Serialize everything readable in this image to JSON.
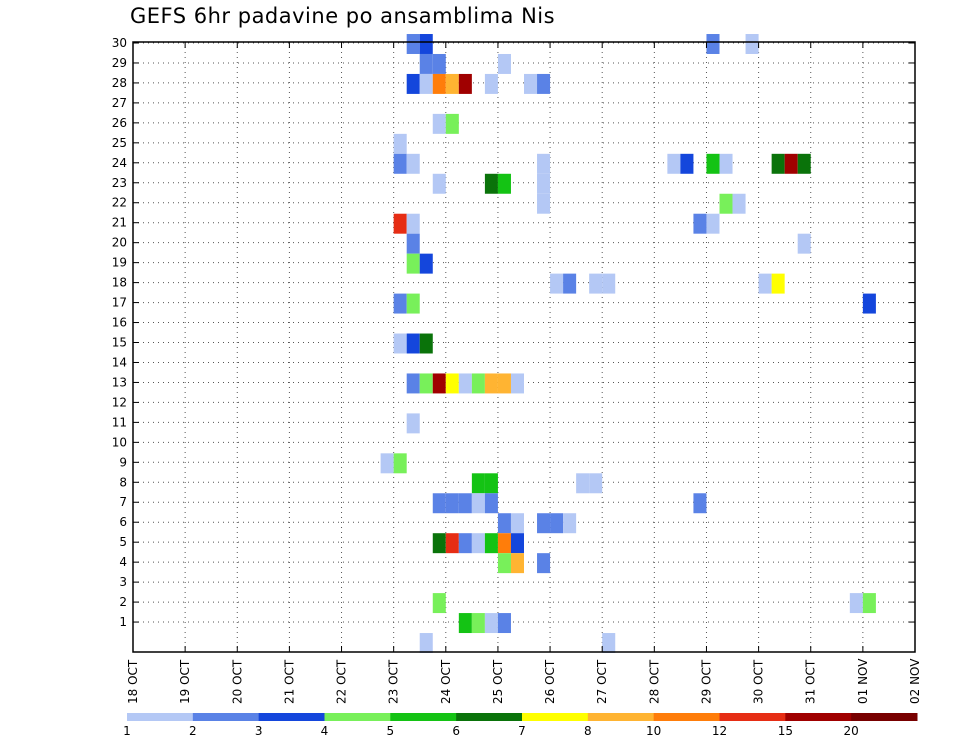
{
  "chart_data": {
    "type": "heatmap",
    "title": "GEFS 6hr padavine po ansamblima Nis",
    "x_tick_labels": [
      "18 OCT",
      "19 OCT",
      "20 OCT",
      "21 OCT",
      "22 OCT",
      "23 OCT",
      "24 OCT",
      "25 OCT",
      "26 OCT",
      "27 OCT",
      "28 OCT",
      "29 OCT",
      "30 OCT",
      "31 OCT",
      "01 NOV",
      "02 NOV"
    ],
    "x_steps_per_tick": 4,
    "y_tick_labels": [
      "1",
      "2",
      "3",
      "4",
      "5",
      "6",
      "7",
      "8",
      "9",
      "10",
      "11",
      "12",
      "13",
      "14",
      "15",
      "16",
      "17",
      "18",
      "19",
      "20",
      "21",
      "22",
      "23",
      "24",
      "25",
      "26",
      "27",
      "28",
      "29",
      "30"
    ],
    "ylim": [
      0,
      30
    ],
    "grid": "dotted",
    "colorbar": {
      "labels": [
        "1",
        "2",
        "3",
        "4",
        "5",
        "6",
        "7",
        "8",
        "10",
        "12",
        "15",
        "20"
      ],
      "colors": [
        "#b4c8f5",
        "#5a82e6",
        "#1446dc",
        "#78f05a",
        "#14c314",
        "#0a730a",
        "#ffff00",
        "#ffb432",
        "#ff7d0a",
        "#e62d14",
        "#a00000",
        "#780000"
      ]
    },
    "cells": [
      {
        "col": 23.25,
        "row": 30,
        "level": 2
      },
      {
        "col": 23.5,
        "row": 30,
        "level": 3
      },
      {
        "col": 29.0,
        "row": 30,
        "level": 2
      },
      {
        "col": 29.75,
        "row": 30,
        "level": 1
      },
      {
        "col": 23.5,
        "row": 29,
        "level": 2
      },
      {
        "col": 23.75,
        "row": 29,
        "level": 2
      },
      {
        "col": 25.0,
        "row": 29,
        "level": 1
      },
      {
        "col": 23.25,
        "row": 28,
        "level": 3
      },
      {
        "col": 23.5,
        "row": 28,
        "level": 1
      },
      {
        "col": 23.75,
        "row": 28,
        "level": 9
      },
      {
        "col": 24.0,
        "row": 28,
        "level": 8
      },
      {
        "col": 24.25,
        "row": 28,
        "level": 11
      },
      {
        "col": 24.75,
        "row": 28,
        "level": 1
      },
      {
        "col": 25.5,
        "row": 28,
        "level": 1
      },
      {
        "col": 25.75,
        "row": 28,
        "level": 2
      },
      {
        "col": 23.75,
        "row": 26,
        "level": 1
      },
      {
        "col": 24.0,
        "row": 26,
        "level": 4
      },
      {
        "col": 23.0,
        "row": 25,
        "level": 1
      },
      {
        "col": 23.0,
        "row": 24,
        "level": 2
      },
      {
        "col": 23.25,
        "row": 24,
        "level": 1
      },
      {
        "col": 25.75,
        "row": 24,
        "level": 1
      },
      {
        "col": 28.25,
        "row": 24,
        "level": 1
      },
      {
        "col": 28.5,
        "row": 24,
        "level": 3
      },
      {
        "col": 29.0,
        "row": 24,
        "level": 5
      },
      {
        "col": 29.25,
        "row": 24,
        "level": 1
      },
      {
        "col": 30.25,
        "row": 24,
        "level": 6
      },
      {
        "col": 30.5,
        "row": 24,
        "level": 11
      },
      {
        "col": 30.75,
        "row": 24,
        "level": 6
      },
      {
        "col": 23.75,
        "row": 23,
        "level": 1
      },
      {
        "col": 24.75,
        "row": 23,
        "level": 6
      },
      {
        "col": 25.0,
        "row": 23,
        "level": 5
      },
      {
        "col": 25.75,
        "row": 23,
        "level": 1
      },
      {
        "col": 25.75,
        "row": 22,
        "level": 1
      },
      {
        "col": 29.25,
        "row": 22,
        "level": 4
      },
      {
        "col": 29.5,
        "row": 22,
        "level": 1
      },
      {
        "col": 23.0,
        "row": 21,
        "level": 10
      },
      {
        "col": 23.25,
        "row": 21,
        "level": 1
      },
      {
        "col": 28.75,
        "row": 21,
        "level": 2
      },
      {
        "col": 29.0,
        "row": 21,
        "level": 1
      },
      {
        "col": 23.25,
        "row": 20,
        "level": 2
      },
      {
        "col": 30.75,
        "row": 20,
        "level": 1
      },
      {
        "col": 23.25,
        "row": 19,
        "level": 4
      },
      {
        "col": 23.5,
        "row": 19,
        "level": 3
      },
      {
        "col": 26.0,
        "row": 18,
        "level": 1
      },
      {
        "col": 26.25,
        "row": 18,
        "level": 2
      },
      {
        "col": 26.75,
        "row": 18,
        "level": 1
      },
      {
        "col": 27.0,
        "row": 18,
        "level": 1
      },
      {
        "col": 30.0,
        "row": 18,
        "level": 1
      },
      {
        "col": 30.25,
        "row": 18,
        "level": 7
      },
      {
        "col": 23.0,
        "row": 17,
        "level": 2
      },
      {
        "col": 23.25,
        "row": 17,
        "level": 4
      },
      {
        "col": 32.0,
        "row": 17,
        "level": 3
      },
      {
        "col": 23.0,
        "row": 15,
        "level": 1
      },
      {
        "col": 23.25,
        "row": 15,
        "level": 3
      },
      {
        "col": 23.5,
        "row": 15,
        "level": 6
      },
      {
        "col": 23.25,
        "row": 13,
        "level": 2
      },
      {
        "col": 23.5,
        "row": 13,
        "level": 4
      },
      {
        "col": 23.75,
        "row": 13,
        "level": 11
      },
      {
        "col": 24.0,
        "row": 13,
        "level": 7
      },
      {
        "col": 24.25,
        "row": 13,
        "level": 1
      },
      {
        "col": 24.5,
        "row": 13,
        "level": 4
      },
      {
        "col": 24.75,
        "row": 13,
        "level": 8
      },
      {
        "col": 25.0,
        "row": 13,
        "level": 8
      },
      {
        "col": 25.25,
        "row": 13,
        "level": 1
      },
      {
        "col": 23.25,
        "row": 11,
        "level": 1
      },
      {
        "col": 22.75,
        "row": 9,
        "level": 1
      },
      {
        "col": 23.0,
        "row": 9,
        "level": 4
      },
      {
        "col": 24.5,
        "row": 8,
        "level": 5
      },
      {
        "col": 24.75,
        "row": 8,
        "level": 5
      },
      {
        "col": 26.5,
        "row": 8,
        "level": 1
      },
      {
        "col": 26.75,
        "row": 8,
        "level": 1
      },
      {
        "col": 23.75,
        "row": 7,
        "level": 2
      },
      {
        "col": 24.0,
        "row": 7,
        "level": 2
      },
      {
        "col": 24.25,
        "row": 7,
        "level": 2
      },
      {
        "col": 24.5,
        "row": 7,
        "level": 1
      },
      {
        "col": 24.75,
        "row": 7,
        "level": 2
      },
      {
        "col": 28.75,
        "row": 7,
        "level": 2
      },
      {
        "col": 25.0,
        "row": 6,
        "level": 2
      },
      {
        "col": 25.25,
        "row": 6,
        "level": 1
      },
      {
        "col": 25.75,
        "row": 6,
        "level": 2
      },
      {
        "col": 26.0,
        "row": 6,
        "level": 2
      },
      {
        "col": 26.25,
        "row": 6,
        "level": 1
      },
      {
        "col": 23.75,
        "row": 5,
        "level": 6
      },
      {
        "col": 24.0,
        "row": 5,
        "level": 10
      },
      {
        "col": 24.25,
        "row": 5,
        "level": 2
      },
      {
        "col": 24.5,
        "row": 5,
        "level": 1
      },
      {
        "col": 24.75,
        "row": 5,
        "level": 5
      },
      {
        "col": 25.0,
        "row": 5,
        "level": 9
      },
      {
        "col": 25.25,
        "row": 5,
        "level": 3
      },
      {
        "col": 25.0,
        "row": 4,
        "level": 4
      },
      {
        "col": 25.25,
        "row": 4,
        "level": 8
      },
      {
        "col": 25.75,
        "row": 4,
        "level": 2
      },
      {
        "col": 23.75,
        "row": 2,
        "level": 4
      },
      {
        "col": 31.75,
        "row": 2,
        "level": 1
      },
      {
        "col": 32.0,
        "row": 2,
        "level": 4
      },
      {
        "col": 24.25,
        "row": 1,
        "level": 5
      },
      {
        "col": 24.5,
        "row": 1,
        "level": 4
      },
      {
        "col": 24.75,
        "row": 1,
        "level": 1
      },
      {
        "col": 25.0,
        "row": 1,
        "level": 2
      },
      {
        "col": 23.5,
        "row": 0,
        "level": 1
      },
      {
        "col": 27.0,
        "row": 0,
        "level": 1
      }
    ]
  }
}
